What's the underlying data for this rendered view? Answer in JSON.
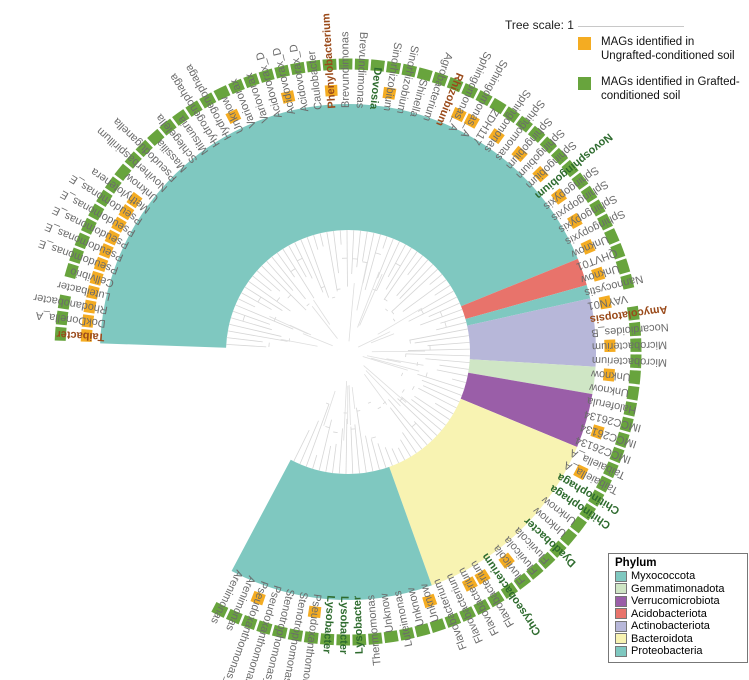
{
  "scale": {
    "label": "Tree scale: 1"
  },
  "mag_legend": [
    {
      "label": "MAGs identified in Ungrafted-conditioned soil",
      "color": "#f4ac22"
    },
    {
      "label": "MAGs identified in Grafted-conditioned soil",
      "color": "#68a43d"
    }
  ],
  "phylum_legend": {
    "title": "Phylum",
    "items": [
      {
        "name": "Myxococcota",
        "color": "#7fc8c0"
      },
      {
        "name": "Gemmatimonadota",
        "color": "#cfe6c5"
      },
      {
        "name": "Verrucomicrobiota",
        "color": "#9a5ea8"
      },
      {
        "name": "Acidobacteriota",
        "color": "#e8736b"
      },
      {
        "name": "Actinobacteriota",
        "color": "#b7b7d9"
      },
      {
        "name": "Bacteroidota",
        "color": "#f8f3b2"
      },
      {
        "name": "Proteobacteria",
        "color": "#7fc8c0"
      }
    ]
  },
  "colors": {
    "text_default": "#6b6b6b",
    "text_green": "#2e6b2e",
    "text_brown": "#9a4a1a"
  },
  "leaves": [
    {
      "name": "Taibacter",
      "style": "brown"
    },
    {
      "name": "DokDonella_A"
    },
    {
      "name": "Rhodanobacter"
    },
    {
      "name": "Luteibacter"
    },
    {
      "name": "Cellvibrio"
    },
    {
      "name": "Pseudomonas_E"
    },
    {
      "name": "Pseudomonas_E"
    },
    {
      "name": "Pseudomonas_E"
    },
    {
      "name": "Pseudomonas_E"
    },
    {
      "name": "Pseudomonas_E"
    },
    {
      "name": "Methylotenera"
    },
    {
      "name": "Unknow"
    },
    {
      "name": "Noviherbaspirillum"
    },
    {
      "name": "Pseudoduganella"
    },
    {
      "name": "Massilia"
    },
    {
      "name": "Schlegelella"
    },
    {
      "name": "Mitsuaria"
    },
    {
      "name": "Hydrogenophaga"
    },
    {
      "name": "Hydrogenophaga"
    },
    {
      "name": "Unknow"
    },
    {
      "name": "Variovorax"
    },
    {
      "name": "Variovorax"
    },
    {
      "name": "Acidovorax_D"
    },
    {
      "name": "Acidovorax_D"
    },
    {
      "name": "Acidovorax_D"
    },
    {
      "name": "Caulobacter"
    },
    {
      "name": "Phenylobacterium",
      "style": "brown"
    },
    {
      "name": "Brevundimonas"
    },
    {
      "name": "Brevundimonas"
    },
    {
      "name": "Devosia",
      "style": "green"
    },
    {
      "name": "Sinorhizobium"
    },
    {
      "name": "Sinorhizobium"
    },
    {
      "name": "Shinella"
    },
    {
      "name": "Agrobacterium"
    },
    {
      "name": "Rhizobium",
      "style": "brown"
    },
    {
      "name": "Sphingomonas_A"
    },
    {
      "name": "Sphingomonas_A"
    },
    {
      "name": "ZDH117"
    },
    {
      "name": "Sphingomonas"
    },
    {
      "name": "Sphingomonas"
    },
    {
      "name": "Sphingobium"
    },
    {
      "name": "Sphingobium"
    },
    {
      "name": "Sphingobium"
    },
    {
      "name": "Novosphingobium",
      "style": "green"
    },
    {
      "name": "Sphingopyxis"
    },
    {
      "name": "Sphingopyxis"
    },
    {
      "name": "Sphingopyxis"
    },
    {
      "name": "Sphingopyxis"
    },
    {
      "name": "Unknow"
    },
    {
      "name": "QHVT01"
    },
    {
      "name": "Unknow"
    },
    {
      "name": "Nannocystis"
    },
    {
      "name": "VAYN01"
    },
    {
      "name": "Amycolatopsis",
      "style": "brown"
    },
    {
      "name": "Nocardioides_B"
    },
    {
      "name": "Microbacterium"
    },
    {
      "name": "Microbacterium"
    },
    {
      "name": "Unknow"
    },
    {
      "name": "Unknow"
    },
    {
      "name": "Haloferula"
    },
    {
      "name": "IMCC26134"
    },
    {
      "name": "IMCC26134"
    },
    {
      "name": "IMCC26134"
    },
    {
      "name": "Taibaiella_A"
    },
    {
      "name": "Taibaiella_A"
    },
    {
      "name": "Chitinophaga",
      "style": "green"
    },
    {
      "name": "Chitinophaga",
      "style": "green"
    },
    {
      "name": "Unknow"
    },
    {
      "name": "Unknow"
    },
    {
      "name": "Dyadobacter",
      "style": "green"
    },
    {
      "name": "Fluviicola"
    },
    {
      "name": "Fluviicola"
    },
    {
      "name": "Fluviicola"
    },
    {
      "name": "Chryseobacterium",
      "style": "green"
    },
    {
      "name": "Flavobacterium"
    },
    {
      "name": "Flavobacterium"
    },
    {
      "name": "Flavobacterium"
    },
    {
      "name": "Flavobacterium"
    },
    {
      "name": "Unknow"
    },
    {
      "name": "Unknow"
    },
    {
      "name": "Luteimonas"
    },
    {
      "name": "Unknow"
    },
    {
      "name": "Thermomonas"
    },
    {
      "name": "Lysobacter",
      "style": "green"
    },
    {
      "name": "Lysobacter",
      "style": "green"
    },
    {
      "name": "Lysobacter",
      "style": "green"
    },
    {
      "name": "Pseudoxanthomonas_C"
    },
    {
      "name": "Stenotrophomonas_A"
    },
    {
      "name": "Stenotrophomonas_A"
    },
    {
      "name": "Pseudoxanthomonas_A"
    },
    {
      "name": "Pseudoxanthomonas_A"
    },
    {
      "name": "Arenimonas"
    },
    {
      "name": "Arenimonas"
    }
  ],
  "phylum_sectors": [
    {
      "phylum": "Proteobacteria",
      "from_leaf": 0,
      "to_leaf": 48,
      "color": "#7fc8c0"
    },
    {
      "phylum": "Acidobacteriota",
      "from_leaf": 49,
      "to_leaf": 50,
      "color": "#e8736b"
    },
    {
      "phylum": "Myxococcota",
      "from_leaf": 51,
      "to_leaf": 51,
      "color": "#7fc8c0"
    },
    {
      "phylum": "Actinobacteriota",
      "from_leaf": 52,
      "to_leaf": 56,
      "color": "#b7b7d9"
    },
    {
      "phylum": "Gemmatimonadota",
      "from_leaf": 57,
      "to_leaf": 58,
      "color": "#cfe6c5"
    },
    {
      "phylum": "Verrucomicrobiota",
      "from_leaf": 59,
      "to_leaf": 62,
      "color": "#9a5ea8"
    },
    {
      "phylum": "Bacteroidota",
      "from_leaf": 63,
      "to_leaf": 77,
      "color": "#f8f3b2"
    },
    {
      "phylum": "Proteobacteria",
      "from_leaf": 78,
      "to_leaf": 92,
      "color": "#7fc8c0"
    }
  ],
  "ring_ungrafted": [
    0,
    1,
    2,
    3,
    4,
    5,
    6,
    7,
    8,
    9,
    10,
    19,
    23,
    26,
    30,
    35,
    36,
    38,
    40,
    42,
    44,
    46,
    48,
    50,
    52,
    55,
    57,
    61,
    64,
    72,
    74,
    75,
    78,
    86,
    90
  ],
  "ring_grafted": [
    0,
    1,
    2,
    4,
    5,
    6,
    7,
    8,
    9,
    10,
    11,
    12,
    13,
    14,
    15,
    16,
    17,
    18,
    19,
    20,
    21,
    22,
    23,
    24,
    25,
    26,
    27,
    28,
    29,
    30,
    31,
    32,
    33,
    34,
    35,
    36,
    37,
    38,
    39,
    40,
    41,
    42,
    43,
    44,
    45,
    46,
    47,
    48,
    49,
    50,
    51,
    53,
    54,
    55,
    56,
    57,
    58,
    59,
    60,
    61,
    62,
    63,
    64,
    65,
    66,
    67,
    68,
    69,
    70,
    71,
    72,
    73,
    74,
    75,
    76,
    77,
    78,
    79,
    80,
    81,
    82,
    83,
    84,
    85,
    86,
    87,
    88,
    89,
    90,
    91,
    92
  ]
}
